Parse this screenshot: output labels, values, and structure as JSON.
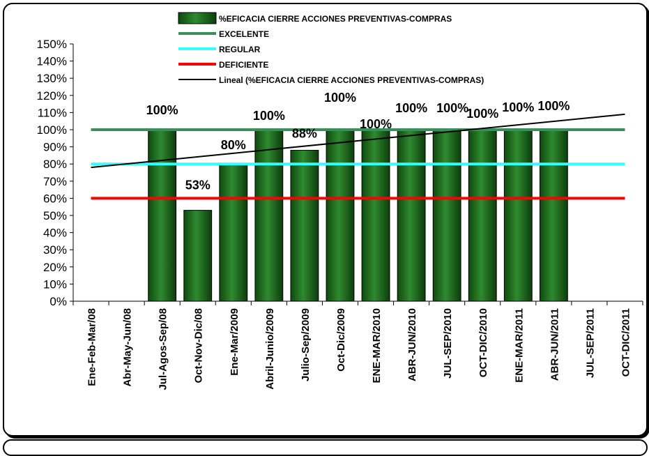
{
  "chart_data": {
    "type": "bar",
    "categories": [
      "Ene-Feb-Mar/08",
      "Abr-May-Jun/08",
      "Jul-Agos-Sep/08",
      "Oct-Nov-Dic/08",
      "Ene-Mar/2009",
      "Abril-Junio/2009",
      "Julio-Sep/2009",
      "Oct-Dic/2009",
      "ENE-MAR/2010",
      "ABR-JUN/2010",
      "JUL-SEP/2010",
      "OCT-DIC/2010",
      "ENE-MAR/2011",
      "ABR-JUN/2011",
      "JUL-SEP/2011",
      "OCT-DIC/2011"
    ],
    "series": [
      {
        "name": "%EFICACIA CIERRE ACCIONES PREVENTIVAS-COMPRAS",
        "values": [
          null,
          null,
          100,
          53,
          80,
          100,
          88,
          100,
          100,
          100,
          100,
          100,
          100,
          100,
          null,
          null
        ],
        "labels": [
          "",
          "",
          "100%",
          "53%",
          "80%",
          "100%",
          "88%",
          "100%",
          "100%",
          "100%",
          "100%",
          "100%",
          "100%",
          "100%",
          "",
          ""
        ],
        "color": "#1e6b1e"
      }
    ],
    "reference_lines": [
      {
        "name": "EXCELENTE",
        "value": 100,
        "color": "#3a8f5c"
      },
      {
        "name": "REGULAR",
        "value": 80,
        "color": "#33ffff"
      },
      {
        "name": "DEFICIENTE",
        "value": 60,
        "color": "#ff0000"
      }
    ],
    "trendline": {
      "name": "Lineal (%EFICACIA CIERRE ACCIONES PREVENTIVAS-COMPRAS)",
      "start": 78,
      "end": 109,
      "color": "#000000"
    },
    "y_ticks": [
      "0%",
      "10%",
      "20%",
      "30%",
      "40%",
      "50%",
      "60%",
      "70%",
      "80%",
      "90%",
      "100%",
      "110%",
      "120%",
      "130%",
      "140%",
      "150%"
    ],
    "ylim": [
      0,
      150
    ],
    "legend_position": "top-center",
    "grid": false
  }
}
